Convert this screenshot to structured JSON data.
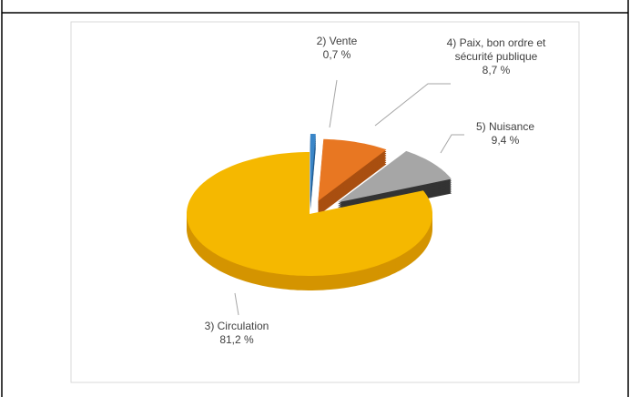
{
  "chart_data": {
    "type": "pie",
    "categories": [
      "2) Vente",
      "4) Paix, bon ordre et sécurité publique",
      "5) Nuisance",
      "3) Circulation"
    ],
    "values": [
      0.7,
      8.7,
      9.4,
      81.2
    ],
    "value_labels": [
      "0,7 %",
      "8,7 %",
      "9,4 %",
      "81,2 %"
    ],
    "colors": [
      "#3a86c8",
      "#e87722",
      "#a6a6a6",
      "#f5b800"
    ],
    "side_colors": [
      "#245e93",
      "#a94f10",
      "#333333",
      "#d49400"
    ]
  }
}
